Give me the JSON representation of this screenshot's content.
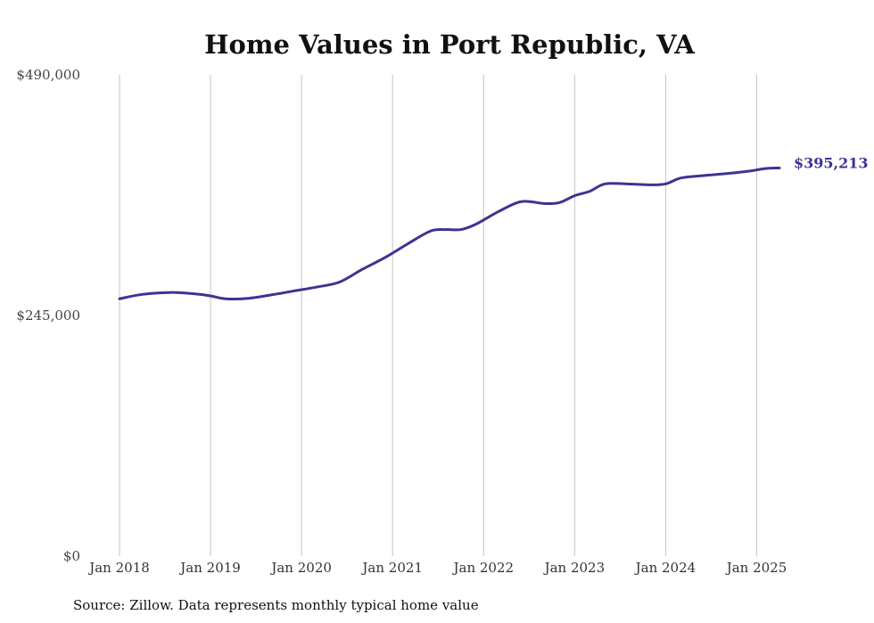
{
  "chart_data": {
    "type": "line",
    "title": "Home Values in Port Republic, VA",
    "xlabel": "",
    "ylabel": "",
    "source": "Source: Zillow. Data represents monthly typical home value",
    "ylim": [
      0,
      490000
    ],
    "xlim": [
      "2018-01",
      "2025-04"
    ],
    "yticks": [
      {
        "value": 0,
        "label": "$0"
      },
      {
        "value": 245000,
        "label": "$245,000"
      },
      {
        "value": 490000,
        "label": "$490,000"
      }
    ],
    "xticks": [
      {
        "value": "2018-01",
        "label": "Jan 2018"
      },
      {
        "value": "2019-01",
        "label": "Jan 2019"
      },
      {
        "value": "2020-01",
        "label": "Jan 2020"
      },
      {
        "value": "2021-01",
        "label": "Jan 2021"
      },
      {
        "value": "2022-01",
        "label": "Jan 2022"
      },
      {
        "value": "2023-01",
        "label": "Jan 2023"
      },
      {
        "value": "2024-01",
        "label": "Jan 2024"
      },
      {
        "value": "2025-01",
        "label": "Jan 2025"
      }
    ],
    "grid": {
      "vertical": true,
      "horizontal": false
    },
    "line_color": "#3a3591",
    "end_label": "$395,213",
    "series": [
      {
        "name": "",
        "points": [
          {
            "x": "2018-01",
            "y": 262000
          },
          {
            "x": "2018-04",
            "y": 266500
          },
          {
            "x": "2018-08",
            "y": 268500
          },
          {
            "x": "2018-11",
            "y": 267000
          },
          {
            "x": "2019-01",
            "y": 265000
          },
          {
            "x": "2019-03",
            "y": 262000
          },
          {
            "x": "2019-06",
            "y": 262500
          },
          {
            "x": "2019-09",
            "y": 266000
          },
          {
            "x": "2019-12",
            "y": 270000
          },
          {
            "x": "2020-03",
            "y": 274000
          },
          {
            "x": "2020-06",
            "y": 279000
          },
          {
            "x": "2020-09",
            "y": 292000
          },
          {
            "x": "2020-12",
            "y": 304000
          },
          {
            "x": "2021-03",
            "y": 318000
          },
          {
            "x": "2021-06",
            "y": 331000
          },
          {
            "x": "2021-08",
            "y": 332500
          },
          {
            "x": "2021-10",
            "y": 332500
          },
          {
            "x": "2021-12",
            "y": 338000
          },
          {
            "x": "2022-03",
            "y": 351000
          },
          {
            "x": "2022-06",
            "y": 361000
          },
          {
            "x": "2022-09",
            "y": 359000
          },
          {
            "x": "2022-11",
            "y": 360000
          },
          {
            "x": "2023-01",
            "y": 367000
          },
          {
            "x": "2023-03",
            "y": 371500
          },
          {
            "x": "2023-05",
            "y": 379000
          },
          {
            "x": "2023-08",
            "y": 379000
          },
          {
            "x": "2023-11",
            "y": 378000
          },
          {
            "x": "2024-01",
            "y": 379000
          },
          {
            "x": "2024-03",
            "y": 385000
          },
          {
            "x": "2024-06",
            "y": 387500
          },
          {
            "x": "2024-09",
            "y": 389500
          },
          {
            "x": "2024-12",
            "y": 392000
          },
          {
            "x": "2025-02",
            "y": 394500
          },
          {
            "x": "2025-04",
            "y": 395213
          }
        ]
      }
    ]
  }
}
